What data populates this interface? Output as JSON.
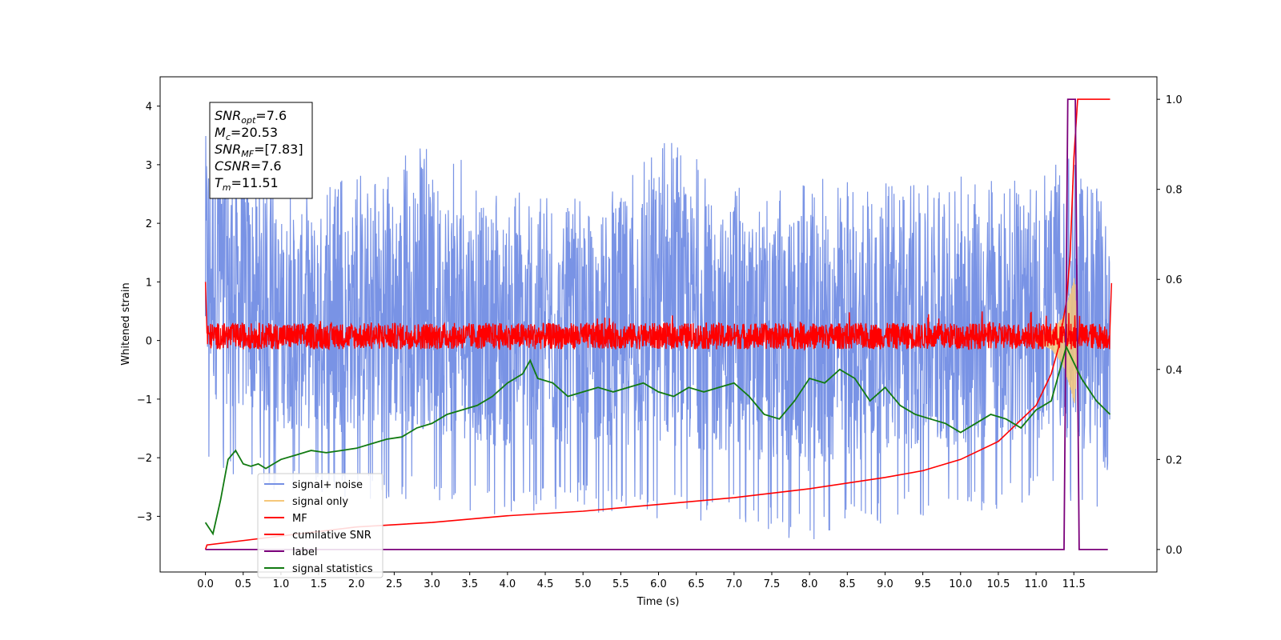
{
  "chart_data": {
    "type": "line",
    "xlabel": "Time (s)",
    "ylabel": "Whitened strain",
    "xlim": [
      -0.6,
      12.6
    ],
    "ylim_left": [
      -3.95,
      4.5
    ],
    "ylim_right": [
      -0.05,
      1.05
    ],
    "x_ticks": [
      "0.0",
      "0.5",
      "1.0",
      "1.5",
      "2.0",
      "2.5",
      "3.0",
      "3.5",
      "4.0",
      "4.5",
      "5.0",
      "5.5",
      "6.0",
      "6.5",
      "7.0",
      "7.5",
      "8.0",
      "8.5",
      "9.0",
      "9.5",
      "10.0",
      "10.5",
      "11.0",
      "11.5"
    ],
    "y_ticks_left": [
      "4",
      "3",
      "2",
      "1",
      "0",
      "−1",
      "−2",
      "−3"
    ],
    "y_ticks_right": [
      "1.0",
      "0.8",
      "0.6",
      "0.4",
      "0.2",
      "0.0"
    ],
    "grid": false,
    "legend_position": "lower-left",
    "annotation_box": {
      "lines": [
        {
          "main": "SNR",
          "sub": "opt",
          "rest": "=7.6"
        },
        {
          "main": "M",
          "sub": "c",
          "rest": "=20.53"
        },
        {
          "main": "SNR",
          "sub": "MF",
          "rest": "=[7.83]"
        },
        {
          "main": "CSNR",
          "sub": "",
          "rest": "=7.6"
        },
        {
          "main": "T",
          "sub": "m",
          "rest": "=11.51"
        }
      ]
    },
    "series": [
      {
        "name": "signal+ noise",
        "axis": "left",
        "color": "#7590e4",
        "envelope": {
          "x": [
            0.0,
            1.0,
            2.0,
            3.0,
            4.0,
            5.0,
            6.0,
            7.0,
            8.0,
            9.0,
            10.0,
            11.0,
            11.5,
            11.98
          ],
          "high": [
            4.17,
            2.6,
            2.8,
            3.4,
            2.6,
            2.4,
            3.7,
            2.6,
            2.8,
            2.7,
            2.8,
            2.7,
            3.3,
            2.3
          ],
          "low": [
            -2.2,
            -2.6,
            -2.7,
            -2.8,
            -3.0,
            -2.9,
            -3.1,
            -3.1,
            -3.5,
            -3.1,
            -3.0,
            -2.8,
            -2.9,
            -3.55
          ]
        }
      },
      {
        "name": "signal only",
        "axis": "left",
        "color": "#f5c77a",
        "x": [
          11.0,
          11.2,
          11.35,
          11.45,
          11.51,
          11.55
        ],
        "amplitude": [
          0.05,
          0.15,
          0.4,
          0.8,
          1.1,
          0.3
        ]
      },
      {
        "name": "MF",
        "axis": "left",
        "color": "#ff0000",
        "x": [
          0.0,
          0.02,
          11.98,
          12.0
        ],
        "y": [
          1.0,
          0.05,
          0.05,
          0.98
        ],
        "noise_band": [
          -0.15,
          0.3
        ]
      },
      {
        "name": "cumilative SNR",
        "axis": "right",
        "color": "#ff0000",
        "x": [
          0.0,
          0.02,
          1.0,
          2.0,
          3.0,
          4.0,
          5.0,
          6.0,
          7.0,
          8.0,
          9.0,
          9.5,
          10.0,
          10.5,
          11.0,
          11.2,
          11.3,
          11.4,
          11.45,
          11.5,
          11.55,
          11.98
        ],
        "y": [
          0.0,
          0.01,
          0.03,
          0.05,
          0.06,
          0.075,
          0.085,
          0.1,
          0.115,
          0.135,
          0.16,
          0.175,
          0.2,
          0.24,
          0.32,
          0.39,
          0.45,
          0.55,
          0.65,
          0.87,
          1.0,
          1.0
        ]
      },
      {
        "name": "label",
        "axis": "right",
        "color": "#7b007b",
        "x": [
          0.0,
          11.37,
          11.42,
          11.52,
          11.57,
          11.95
        ],
        "y": [
          0.0,
          0.0,
          1.0,
          1.0,
          0.0,
          0.0
        ]
      },
      {
        "name": "signal statistics",
        "axis": "right",
        "color": "#117a11",
        "x": [
          0.0,
          0.1,
          0.2,
          0.3,
          0.4,
          0.5,
          0.6,
          0.7,
          0.8,
          0.9,
          1.0,
          1.2,
          1.4,
          1.6,
          1.8,
          2.0,
          2.2,
          2.4,
          2.6,
          2.8,
          3.0,
          3.2,
          3.4,
          3.6,
          3.8,
          4.0,
          4.2,
          4.3,
          4.4,
          4.6,
          4.8,
          5.0,
          5.2,
          5.4,
          5.6,
          5.8,
          6.0,
          6.2,
          6.4,
          6.6,
          6.8,
          7.0,
          7.2,
          7.4,
          7.6,
          7.8,
          8.0,
          8.2,
          8.4,
          8.6,
          8.8,
          9.0,
          9.2,
          9.4,
          9.6,
          9.8,
          10.0,
          10.2,
          10.4,
          10.6,
          10.8,
          11.0,
          11.2,
          11.4,
          11.6,
          11.8,
          11.98
        ],
        "y": [
          0.06,
          0.035,
          0.11,
          0.2,
          0.22,
          0.19,
          0.185,
          0.19,
          0.18,
          0.19,
          0.2,
          0.21,
          0.22,
          0.215,
          0.22,
          0.225,
          0.235,
          0.245,
          0.25,
          0.27,
          0.28,
          0.3,
          0.31,
          0.32,
          0.34,
          0.37,
          0.39,
          0.42,
          0.38,
          0.37,
          0.34,
          0.35,
          0.36,
          0.35,
          0.36,
          0.37,
          0.35,
          0.34,
          0.36,
          0.35,
          0.36,
          0.37,
          0.34,
          0.3,
          0.29,
          0.33,
          0.38,
          0.37,
          0.4,
          0.38,
          0.33,
          0.36,
          0.32,
          0.3,
          0.29,
          0.28,
          0.26,
          0.28,
          0.3,
          0.29,
          0.27,
          0.31,
          0.33,
          0.45,
          0.38,
          0.33,
          0.3
        ]
      }
    ]
  }
}
